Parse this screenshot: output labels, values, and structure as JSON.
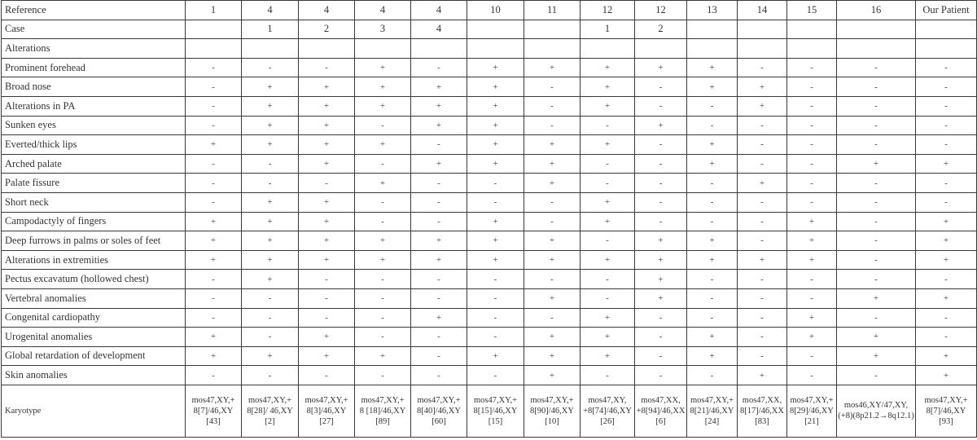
{
  "table": {
    "reference_label": "Reference",
    "references": [
      "1",
      "4",
      "4",
      "4",
      "4",
      "10",
      "11",
      "12",
      "12",
      "13",
      "14",
      "15",
      "16",
      "Our Patient"
    ],
    "case_label": "Case",
    "cases": [
      "",
      "1",
      "2",
      "3",
      "4",
      "",
      "",
      "1",
      "2",
      "",
      "",
      "",
      "",
      ""
    ],
    "alterations_label": "Alterations",
    "rows": [
      {
        "label": "Prominent forehead",
        "values": [
          "-",
          "-",
          "-",
          "+",
          "-",
          "+",
          "+",
          "+",
          "+",
          "+",
          "-",
          "-",
          "-",
          "-"
        ]
      },
      {
        "label": "Broad nose",
        "values": [
          "-",
          "+",
          "+",
          "+",
          "+",
          "+",
          "-",
          "+",
          "-",
          "+",
          "+",
          "-",
          "-",
          "-"
        ]
      },
      {
        "label": "Alterations in PA",
        "values": [
          "-",
          "+",
          "+",
          "+",
          "+",
          "+",
          "-",
          "+",
          "-",
          "-",
          "+",
          "-",
          "-",
          "-"
        ]
      },
      {
        "label": "Sunken eyes",
        "values": [
          "-",
          "+",
          "+",
          "-",
          "+",
          "+",
          "-",
          "-",
          "+",
          "-",
          "-",
          "-",
          "-",
          "-"
        ]
      },
      {
        "label": "Everted/thick lips",
        "values": [
          "+",
          "+",
          "+",
          "+",
          "-",
          "+",
          "+",
          "+",
          "-",
          "+",
          "-",
          "-",
          "-",
          "-"
        ]
      },
      {
        "label": "Arched palate",
        "values": [
          "-",
          "-",
          "+",
          "-",
          "+",
          "+",
          "+",
          "-",
          "-",
          "+",
          "-",
          "-",
          "+",
          "+"
        ]
      },
      {
        "label": "Palate fissure",
        "values": [
          "-",
          "-",
          "-",
          "+",
          "-",
          "-",
          "+",
          "-",
          "-",
          "-",
          "+",
          "-",
          "-",
          "-"
        ]
      },
      {
        "label": "Short neck",
        "values": [
          "-",
          "+",
          "+",
          "-",
          "-",
          "-",
          "-",
          "+",
          "-",
          "-",
          "-",
          "-",
          "-",
          "-"
        ]
      },
      {
        "label": "Campodactyly of fingers",
        "values": [
          "+",
          "+",
          "+",
          "-",
          "-",
          "+",
          "-",
          "+",
          "-",
          "-",
          "-",
          "+",
          "-",
          "+"
        ]
      },
      {
        "label": "Deep furrows in palms or soles of feet",
        "values": [
          "+",
          "+",
          "+",
          "+",
          "+",
          "+",
          "+",
          "-",
          "+",
          "+",
          "-",
          "+",
          "-",
          "+"
        ]
      },
      {
        "label": "Alterations in extremities",
        "values": [
          "+",
          "+",
          "+",
          "+",
          "+",
          "+",
          "+",
          "+",
          "+",
          "+",
          "+",
          "+",
          "-",
          "+"
        ]
      },
      {
        "label": "Pectus excavatum (hollowed chest)",
        "values": [
          "-",
          "+",
          "-",
          "-",
          "-",
          "-",
          "-",
          "-",
          "+",
          "-",
          "-",
          "-",
          "-",
          "-"
        ]
      },
      {
        "label": "Vertebral anomalies",
        "values": [
          "-",
          "-",
          "-",
          "-",
          "-",
          "-",
          "+",
          "-",
          "+",
          "-",
          "-",
          "-",
          "+",
          "+"
        ]
      },
      {
        "label": "Congenital cardiopathy",
        "values": [
          "-",
          "-",
          "-",
          "-",
          "+",
          "-",
          "-",
          "+",
          "-",
          "-",
          "-",
          "+",
          "-",
          "-"
        ]
      },
      {
        "label": "Urogenital anomalies",
        "values": [
          "+",
          "-",
          "+",
          "-",
          "-",
          "-",
          "+",
          "+",
          "-",
          "+",
          "-",
          "+",
          "+",
          "-"
        ]
      },
      {
        "label": "Global retardation of development",
        "values": [
          "+",
          "+",
          "+",
          "+",
          "-",
          "+",
          "+",
          "+",
          "-",
          "+",
          "-",
          "-",
          "+",
          "+"
        ]
      },
      {
        "label": "Skin anomalies",
        "values": [
          "-",
          "-",
          "-",
          "-",
          "-",
          "-",
          "+",
          "-",
          "-",
          "-",
          "+",
          "-",
          "-",
          "+"
        ]
      }
    ],
    "karyotype_label": "Karyotype",
    "karyotypes": [
      "mos47,XY,+\n8[7]/46,XY\n[43]",
      "mos47,XY,+\n8[28]/ 46,XY\n[2]",
      "mos47,XY,+\n8[3]/46,XY\n[27]",
      "mos47,XY,+\n8 [18]/46,XY\n[89]",
      "mos47,XY,+\n8[40]/46,XY\n[60]",
      "mos47,XY,+\n8[15]/46,XY\n[15]",
      "mos47,XY,+\n8[90]/46,XY\n[10]",
      "mos47,XY,\n+8[74]/46,XY\n[26]",
      "mos47,XX,\n+8[94]/46,XX\n[6]",
      "mos47,XY,+\n8[21]/46,XY\n[24]",
      "mos47,XX,\n8[17]/46,XX\n[83]",
      "mos47,XY,+\n8[29]/46,XY\n[21]",
      "mos46,XY/47,XY,\n(+8)(8p21.2→8q12.1)",
      "mos47,XY,+\n8[7]/46,XY\n[93]"
    ]
  }
}
